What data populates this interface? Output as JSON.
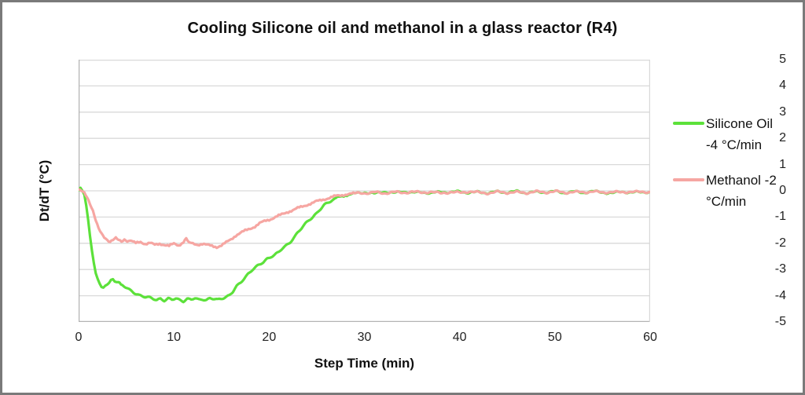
{
  "chart_data": {
    "type": "line",
    "title": "Cooling Silicone oil and methanol in a glass reactor (R4)",
    "xlabel": "Step Time (min)",
    "ylabel": "Dt/dT (°C)",
    "xlim": [
      0,
      60
    ],
    "ylim": [
      -5,
      5
    ],
    "x_ticks": [
      0,
      10,
      20,
      30,
      40,
      50,
      60
    ],
    "y_ticks": [
      5,
      4,
      3,
      2,
      1,
      0,
      -1,
      -2,
      -3,
      -4,
      -5
    ],
    "grid": true,
    "legend_position": "right-outside",
    "series": [
      {
        "id": "silicone-oil",
        "name": "Silicone Oil -4 °C/min",
        "color": "#5ce13a",
        "points": [
          [
            0,
            0.02
          ],
          [
            0.2,
            0.08
          ],
          [
            0.4,
            0
          ],
          [
            0.6,
            -0.15
          ],
          [
            0.8,
            -0.6
          ],
          [
            1,
            -1.1
          ],
          [
            1.2,
            -1.7
          ],
          [
            1.4,
            -2.3
          ],
          [
            1.6,
            -2.75
          ],
          [
            1.8,
            -3.1
          ],
          [
            2,
            -3.35
          ],
          [
            2.2,
            -3.55
          ],
          [
            2.4,
            -3.65
          ],
          [
            2.6,
            -3.7
          ],
          [
            2.8,
            -3.66
          ],
          [
            3,
            -3.58
          ],
          [
            3.2,
            -3.5
          ],
          [
            3.4,
            -3.42
          ],
          [
            3.6,
            -3.36
          ],
          [
            3.8,
            -3.42
          ],
          [
            4,
            -3.48
          ],
          [
            4.3,
            -3.52
          ],
          [
            4.6,
            -3.6
          ],
          [
            5,
            -3.7
          ],
          [
            5.4,
            -3.8
          ],
          [
            5.8,
            -3.88
          ],
          [
            6.2,
            -3.94
          ],
          [
            6.6,
            -4
          ],
          [
            7,
            -4.05
          ],
          [
            7.4,
            -4.08
          ],
          [
            7.8,
            -4.12
          ],
          [
            8.2,
            -4.15
          ],
          [
            8.6,
            -4.1
          ],
          [
            9,
            -4.18
          ],
          [
            9.4,
            -4.12
          ],
          [
            9.8,
            -4.16
          ],
          [
            10.2,
            -4.1
          ],
          [
            10.6,
            -4.15
          ],
          [
            11,
            -4.2
          ],
          [
            11.4,
            -4.12
          ],
          [
            11.8,
            -4.16
          ],
          [
            12.2,
            -4.1
          ],
          [
            12.6,
            -4.15
          ],
          [
            13,
            -4.12
          ],
          [
            13.4,
            -4.16
          ],
          [
            13.8,
            -4.1
          ],
          [
            14.2,
            -4.13
          ],
          [
            14.6,
            -4.16
          ],
          [
            15,
            -4.1
          ],
          [
            15.4,
            -4.05
          ],
          [
            15.8,
            -3.98
          ],
          [
            16.2,
            -3.85
          ],
          [
            16.6,
            -3.65
          ],
          [
            17,
            -3.5
          ],
          [
            17.4,
            -3.33
          ],
          [
            17.8,
            -3.15
          ],
          [
            18.2,
            -3.02
          ],
          [
            18.6,
            -2.92
          ],
          [
            19,
            -2.82
          ],
          [
            19.4,
            -2.72
          ],
          [
            19.8,
            -2.58
          ],
          [
            20.2,
            -2.5
          ],
          [
            20.6,
            -2.44
          ],
          [
            21,
            -2.35
          ],
          [
            21.4,
            -2.2
          ],
          [
            21.8,
            -2.08
          ],
          [
            22.2,
            -1.95
          ],
          [
            22.6,
            -1.78
          ],
          [
            23,
            -1.6
          ],
          [
            23.4,
            -1.44
          ],
          [
            23.8,
            -1.26
          ],
          [
            24.2,
            -1.1
          ],
          [
            24.6,
            -0.98
          ],
          [
            25,
            -0.85
          ],
          [
            25.4,
            -0.7
          ],
          [
            25.8,
            -0.55
          ],
          [
            26.2,
            -0.45
          ],
          [
            26.6,
            -0.35
          ],
          [
            27,
            -0.28
          ],
          [
            27.5,
            -0.22
          ],
          [
            28,
            -0.17
          ],
          [
            28.5,
            -0.13
          ],
          [
            29,
            -0.1
          ],
          [
            30,
            -0.06
          ],
          [
            31,
            -0.11
          ],
          [
            32,
            -0.03
          ],
          [
            33,
            -0.09
          ],
          [
            34,
            -0.02
          ],
          [
            35,
            -0.08
          ],
          [
            36,
            -0.04
          ],
          [
            37,
            -0.1
          ],
          [
            38,
            -0.03
          ],
          [
            39,
            -0.07
          ],
          [
            40,
            -0.02
          ],
          [
            41,
            -0.08
          ],
          [
            42,
            -0.04
          ],
          [
            43,
            -0.09
          ],
          [
            44,
            -0.03
          ],
          [
            45,
            -0.07
          ],
          [
            46,
            -0.02
          ],
          [
            47,
            -0.08
          ],
          [
            48,
            -0.04
          ],
          [
            49,
            -0.06
          ],
          [
            50,
            -0.02
          ],
          [
            51,
            -0.08
          ],
          [
            52,
            -0.03
          ],
          [
            53,
            -0.07
          ],
          [
            54,
            -0.02
          ],
          [
            55,
            -0.06
          ],
          [
            56,
            -0.09
          ],
          [
            57,
            -0.03
          ],
          [
            58,
            -0.07
          ],
          [
            59,
            -0.04
          ],
          [
            60,
            -0.05
          ]
        ]
      },
      {
        "id": "methanol",
        "name": "Methanol -2 °C/min",
        "color": "#f6a6a2",
        "points": [
          [
            0,
            0.03
          ],
          [
            0.3,
            0
          ],
          [
            0.6,
            -0.08
          ],
          [
            0.9,
            -0.25
          ],
          [
            1.2,
            -0.5
          ],
          [
            1.5,
            -0.75
          ],
          [
            1.8,
            -1.1
          ],
          [
            2.1,
            -1.4
          ],
          [
            2.4,
            -1.6
          ],
          [
            2.7,
            -1.75
          ],
          [
            3,
            -1.86
          ],
          [
            3.3,
            -1.93
          ],
          [
            3.6,
            -1.85
          ],
          [
            3.9,
            -1.78
          ],
          [
            4.2,
            -1.86
          ],
          [
            4.5,
            -1.94
          ],
          [
            4.8,
            -1.88
          ],
          [
            5.1,
            -1.94
          ],
          [
            5.5,
            -1.9
          ],
          [
            6,
            -2
          ],
          [
            6.5,
            -1.95
          ],
          [
            7,
            -2.02
          ],
          [
            7.5,
            -1.98
          ],
          [
            8,
            -2.07
          ],
          [
            8.5,
            -2.02
          ],
          [
            9,
            -2.05
          ],
          [
            9.5,
            -2.1
          ],
          [
            10,
            -2.02
          ],
          [
            10.5,
            -2.08
          ],
          [
            11,
            -1.95
          ],
          [
            11.3,
            -1.78
          ],
          [
            11.6,
            -1.95
          ],
          [
            12,
            -2.02
          ],
          [
            12.5,
            -2.05
          ],
          [
            13,
            -2.02
          ],
          [
            13.5,
            -2.07
          ],
          [
            14,
            -2.1
          ],
          [
            14.5,
            -2.14
          ],
          [
            15,
            -2.08
          ],
          [
            15.5,
            -1.97
          ],
          [
            16,
            -1.85
          ],
          [
            16.5,
            -1.7
          ],
          [
            17,
            -1.6
          ],
          [
            17.5,
            -1.52
          ],
          [
            18,
            -1.44
          ],
          [
            18.5,
            -1.36
          ],
          [
            19,
            -1.24
          ],
          [
            19.5,
            -1.16
          ],
          [
            20,
            -1.1
          ],
          [
            20.5,
            -1.02
          ],
          [
            21,
            -0.95
          ],
          [
            21.5,
            -0.88
          ],
          [
            22,
            -0.8
          ],
          [
            22.5,
            -0.73
          ],
          [
            23,
            -0.66
          ],
          [
            23.5,
            -0.6
          ],
          [
            24,
            -0.53
          ],
          [
            24.5,
            -0.47
          ],
          [
            25,
            -0.4
          ],
          [
            25.5,
            -0.35
          ],
          [
            26,
            -0.3
          ],
          [
            26.5,
            -0.25
          ],
          [
            27,
            -0.2
          ],
          [
            27.5,
            -0.17
          ],
          [
            28,
            -0.14
          ],
          [
            28.5,
            -0.12
          ],
          [
            29,
            -0.1
          ],
          [
            30,
            -0.09
          ],
          [
            31,
            -0.05
          ],
          [
            32,
            -0.1
          ],
          [
            33,
            -0.04
          ],
          [
            34,
            -0.08
          ],
          [
            35,
            -0.03
          ],
          [
            36,
            -0.07
          ],
          [
            37,
            -0.04
          ],
          [
            38,
            -0.09
          ],
          [
            39,
            -0.05
          ],
          [
            40,
            -0.07
          ],
          [
            41,
            -0.03
          ],
          [
            42,
            -0.06
          ],
          [
            43,
            -0.09
          ],
          [
            44,
            -0.04
          ],
          [
            45,
            -0.07
          ],
          [
            46,
            -0.05
          ],
          [
            47,
            -0.08
          ],
          [
            48,
            -0.03
          ],
          [
            49,
            -0.06
          ],
          [
            50,
            -0.02
          ],
          [
            51,
            -0.07
          ],
          [
            52,
            -0.04
          ],
          [
            53,
            -0.06
          ],
          [
            54,
            -0.02
          ],
          [
            55,
            -0.07
          ],
          [
            56,
            -0.04
          ],
          [
            57,
            -0.06
          ],
          [
            58,
            -0.03
          ],
          [
            59,
            -0.05
          ],
          [
            60,
            -0.04
          ]
        ]
      }
    ],
    "style": {
      "noise_amplitude": 0.045,
      "line_width": 3.2,
      "grid_color": "#d9d9d9",
      "axis_color": "#b3b3b3",
      "text_color": "#1a1a1a",
      "background": "#ffffff",
      "frame_border_color": "#7a7a7a"
    }
  }
}
